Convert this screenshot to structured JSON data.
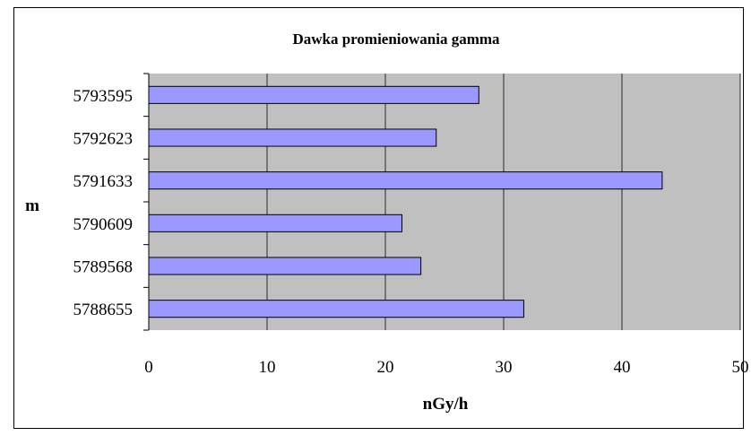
{
  "chart_data": {
    "type": "bar",
    "orientation": "horizontal",
    "title": "Dawka promieniowania gamma",
    "xlabel": "nGy/h",
    "ylabel": "m",
    "xlim": [
      0,
      50
    ],
    "xticks": [
      "0",
      "10",
      "20",
      "30",
      "40",
      "50"
    ],
    "grid": "vertical",
    "categories": [
      "5793595",
      "5792623",
      "5791633",
      "5790609",
      "5789568",
      "5788655"
    ],
    "values": [
      27.9,
      24.3,
      43.4,
      21.4,
      23.0,
      31.7
    ],
    "colors": {
      "bar": "#9999ff",
      "plot_background": "#c0c0c0",
      "gridline": "#000000"
    }
  }
}
